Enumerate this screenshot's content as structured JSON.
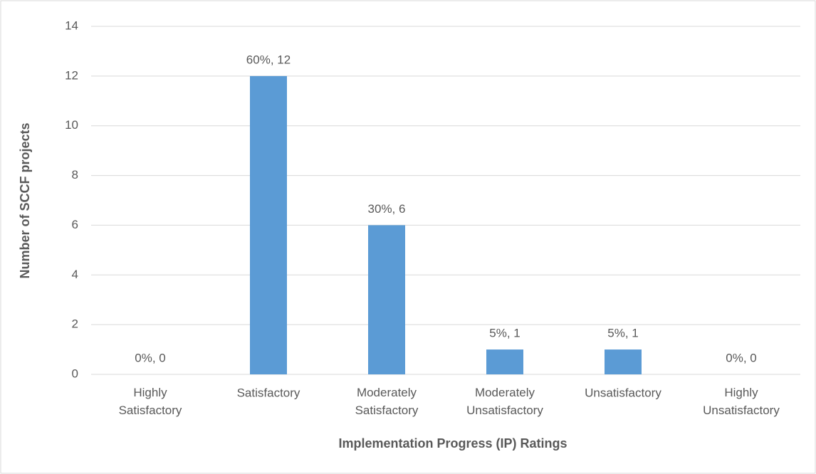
{
  "chart_data": {
    "type": "bar",
    "categories": [
      "Highly Satisfactory",
      "Satisfactory",
      "Moderately Satisfactory",
      "Moderately Unsatisfactory",
      "Unsatisfactory",
      "Highly Unsatisfactory"
    ],
    "values": [
      0,
      12,
      6,
      1,
      1,
      0
    ],
    "value_labels": [
      "0%, 0",
      "60%, 12",
      "30%, 6",
      "5%, 1",
      "5%, 1",
      "0%, 0"
    ],
    "color": "#5b9bd5",
    "ylim": [
      0,
      14
    ],
    "yticks": [
      0,
      2,
      4,
      6,
      8,
      10,
      12,
      14
    ],
    "grid": true,
    "xlabel": "Implementation Progress (IP) Ratings",
    "ylabel": "Number of SCCF projects"
  }
}
